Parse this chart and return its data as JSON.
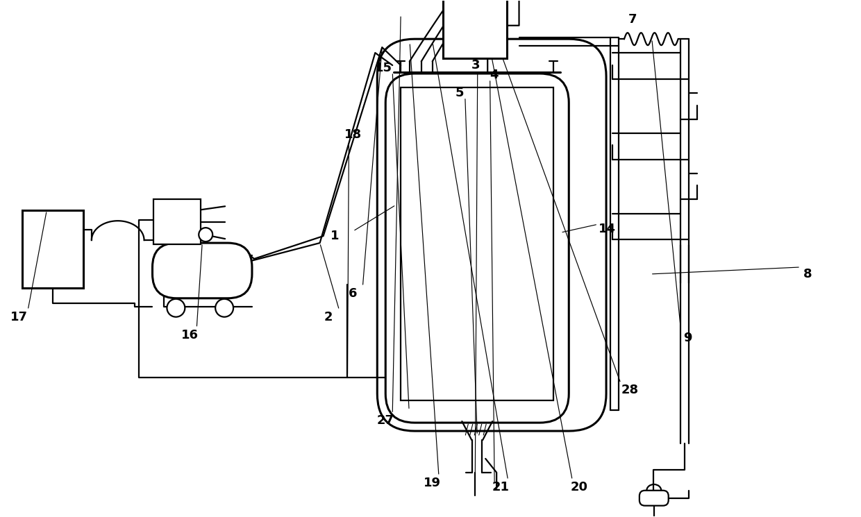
{
  "bg_color": "#ffffff",
  "lc": "#000000",
  "lw": 1.6,
  "lw2": 2.2,
  "figsize": [
    12.4,
    7.45
  ],
  "dpi": 100
}
